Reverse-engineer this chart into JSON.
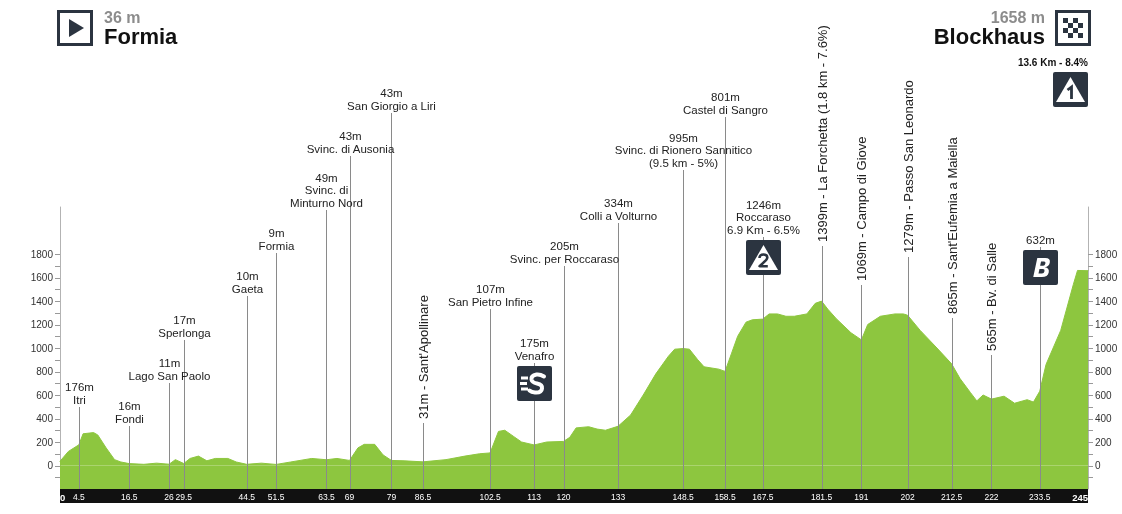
{
  "chart_data": {
    "type": "area",
    "color": "#8dc63f",
    "x": [
      0,
      2,
      4.5,
      5.5,
      8,
      9,
      11,
      13,
      14.5,
      16.5,
      20,
      23,
      26,
      27.5,
      29.5,
      31,
      33,
      35,
      37,
      40,
      42,
      44.5,
      48,
      51.5,
      55,
      60,
      63.5,
      66,
      69,
      71,
      72.5,
      75,
      77,
      79,
      82,
      86.5,
      92,
      96.5,
      100,
      102.5,
      104.5,
      106,
      108,
      110,
      113,
      116,
      120,
      121.5,
      123,
      126,
      128,
      130,
      133,
      136,
      139,
      142,
      145,
      146.5,
      148.5,
      150,
      152,
      153.5,
      157,
      158.5,
      160,
      161.5,
      163.5,
      165,
      167.5,
      169,
      171,
      173,
      175,
      176.5,
      178,
      180,
      181.5,
      183,
      185,
      188.5,
      191,
      192.5,
      195.5,
      199,
      201,
      202,
      205,
      209,
      212.5,
      214.5,
      217,
      218.5,
      220,
      222,
      225,
      227.5,
      230.5,
      232,
      233.5,
      235,
      238.5,
      241.5,
      242.5,
      245
    ],
    "values": [
      36,
      120,
      176,
      270,
      280,
      260,
      150,
      50,
      30,
      16,
      10,
      20,
      11,
      50,
      17,
      60,
      80,
      40,
      60,
      60,
      30,
      10,
      20,
      9,
      30,
      60,
      49,
      60,
      43,
      150,
      180,
      180,
      90,
      43,
      40,
      31,
      50,
      80,
      100,
      107,
      290,
      300,
      250,
      200,
      175,
      200,
      205,
      240,
      320,
      330,
      310,
      300,
      334,
      430,
      600,
      780,
      930,
      990,
      995,
      990,
      900,
      840,
      820,
      801,
      950,
      1100,
      1220,
      1240,
      1246,
      1290,
      1290,
      1270,
      1270,
      1280,
      1290,
      1380,
      1399,
      1330,
      1250,
      1130,
      1069,
      1200,
      1270,
      1290,
      1290,
      1279,
      1150,
      1000,
      865,
      740,
      620,
      550,
      600,
      565,
      590,
      530,
      560,
      540,
      632,
      860,
      1150,
      1540,
      1660,
      1658
    ],
    "xlim": [
      0,
      245
    ],
    "xticks": [
      0,
      4.5,
      16.5,
      26,
      29.5,
      44.5,
      51.5,
      63.5,
      69,
      79,
      86.5,
      102.5,
      113,
      120,
      133,
      148.5,
      158.5,
      167.5,
      181.5,
      191,
      202,
      212.5,
      222,
      233.5,
      245
    ],
    "ylim": [
      -200,
      2200
    ],
    "yticks": [
      {
        "value": -100,
        "label": null
      },
      0,
      {
        "value": 100,
        "label": null
      },
      200,
      {
        "value": 300,
        "label": null
      },
      400,
      {
        "value": 500,
        "label": null
      },
      600,
      {
        "value": 700,
        "label": null
      },
      800,
      {
        "value": 900,
        "label": null
      },
      1000,
      {
        "value": 1100,
        "label": null
      },
      1200,
      {
        "value": 1300,
        "label": null
      },
      1400,
      {
        "value": 1500,
        "label": null
      },
      1600,
      {
        "value": 1700,
        "label": null
      },
      1800
    ],
    "y2lim": [
      -200,
      2200
    ],
    "y2ticks": [
      {
        "value": -100,
        "label": null
      },
      0,
      {
        "value": 100,
        "label": null
      },
      200,
      {
        "value": 300,
        "label": null
      },
      400,
      {
        "value": 500,
        "label": null
      },
      600,
      {
        "value": 700,
        "label": null
      },
      800,
      {
        "value": 900,
        "label": null
      },
      1000,
      {
        "value": 1100,
        "label": null
      },
      1200,
      {
        "value": 1300,
        "label": null
      },
      1400,
      {
        "value": 1500,
        "label": null
      },
      1600,
      {
        "value": 1700,
        "label": null
      },
      1800
    ],
    "bands": [
      {
        "axis": "y",
        "from": -200,
        "to": 0,
        "color": "#8dc63f"
      }
    ],
    "ref_lines": [
      {
        "axis": "x",
        "value": 4.5,
        "label": "176m\nItri"
      },
      {
        "axis": "x",
        "value": 16.5,
        "label": "16m\nFondi"
      },
      {
        "axis": "x",
        "value": 26,
        "label": "11m\nLago San Paolo"
      },
      {
        "axis": "x",
        "value": 29.5,
        "label": "17m\nSperlonga"
      },
      {
        "axis": "x",
        "value": 44.5,
        "label": "10m\nGaeta"
      },
      {
        "axis": "x",
        "value": 51.5,
        "label": "9m\nFormia"
      },
      {
        "axis": "x",
        "value": 63.5,
        "label": "49m\nSvinc. di\nMinturno Nord"
      },
      {
        "axis": "x",
        "value": 69,
        "label": "43m\nSvinc. di Ausonia"
      },
      {
        "axis": "x",
        "value": 79,
        "label": "43m\nSan Giorgio a Liri"
      },
      {
        "axis": "x",
        "value": 86.5,
        "label": "31m - Sant'Apollinare"
      },
      {
        "axis": "x",
        "value": 102.5,
        "label": "107m\nSan Pietro Infine"
      },
      {
        "axis": "x",
        "value": 113,
        "label": "175m\nVenafro"
      },
      {
        "axis": "x",
        "value": 120,
        "label": "205m\nSvinc. per Roccaraso"
      },
      {
        "axis": "x",
        "value": 133,
        "label": "334m\nColli a Volturno"
      },
      {
        "axis": "x",
        "value": 148.5,
        "label": "995m\nSvinc. di Rionero Sannitico\n(9.5 km - 5%)"
      },
      {
        "axis": "x",
        "value": 158.5,
        "label": "801m\nCastel di Sangro"
      },
      {
        "axis": "x",
        "value": 167.5,
        "label": "1246m\nRoccaraso\n6.9 Km - 6.5%"
      },
      {
        "axis": "x",
        "value": 181.5,
        "label": "1399m - La Forchetta (1.8 km - 7.6%)"
      },
      {
        "axis": "x",
        "value": 191,
        "label": "1069m - Campo di Giove"
      },
      {
        "axis": "x",
        "value": 202,
        "label": "1279m - Passo San Leonardo"
      },
      {
        "axis": "x",
        "value": 212.5,
        "label": "865m - Sant'Eufemia a Maiella"
      },
      {
        "axis": "x",
        "value": 222,
        "label": "565m - Bv. di Salle"
      },
      {
        "axis": "x",
        "value": 233.5,
        "label": "632m"
      }
    ],
    "annotations": [
      "36 m\nFormia",
      "1658 m\nBlockhaus",
      "13.6 Km - 8.4%"
    ]
  }
}
